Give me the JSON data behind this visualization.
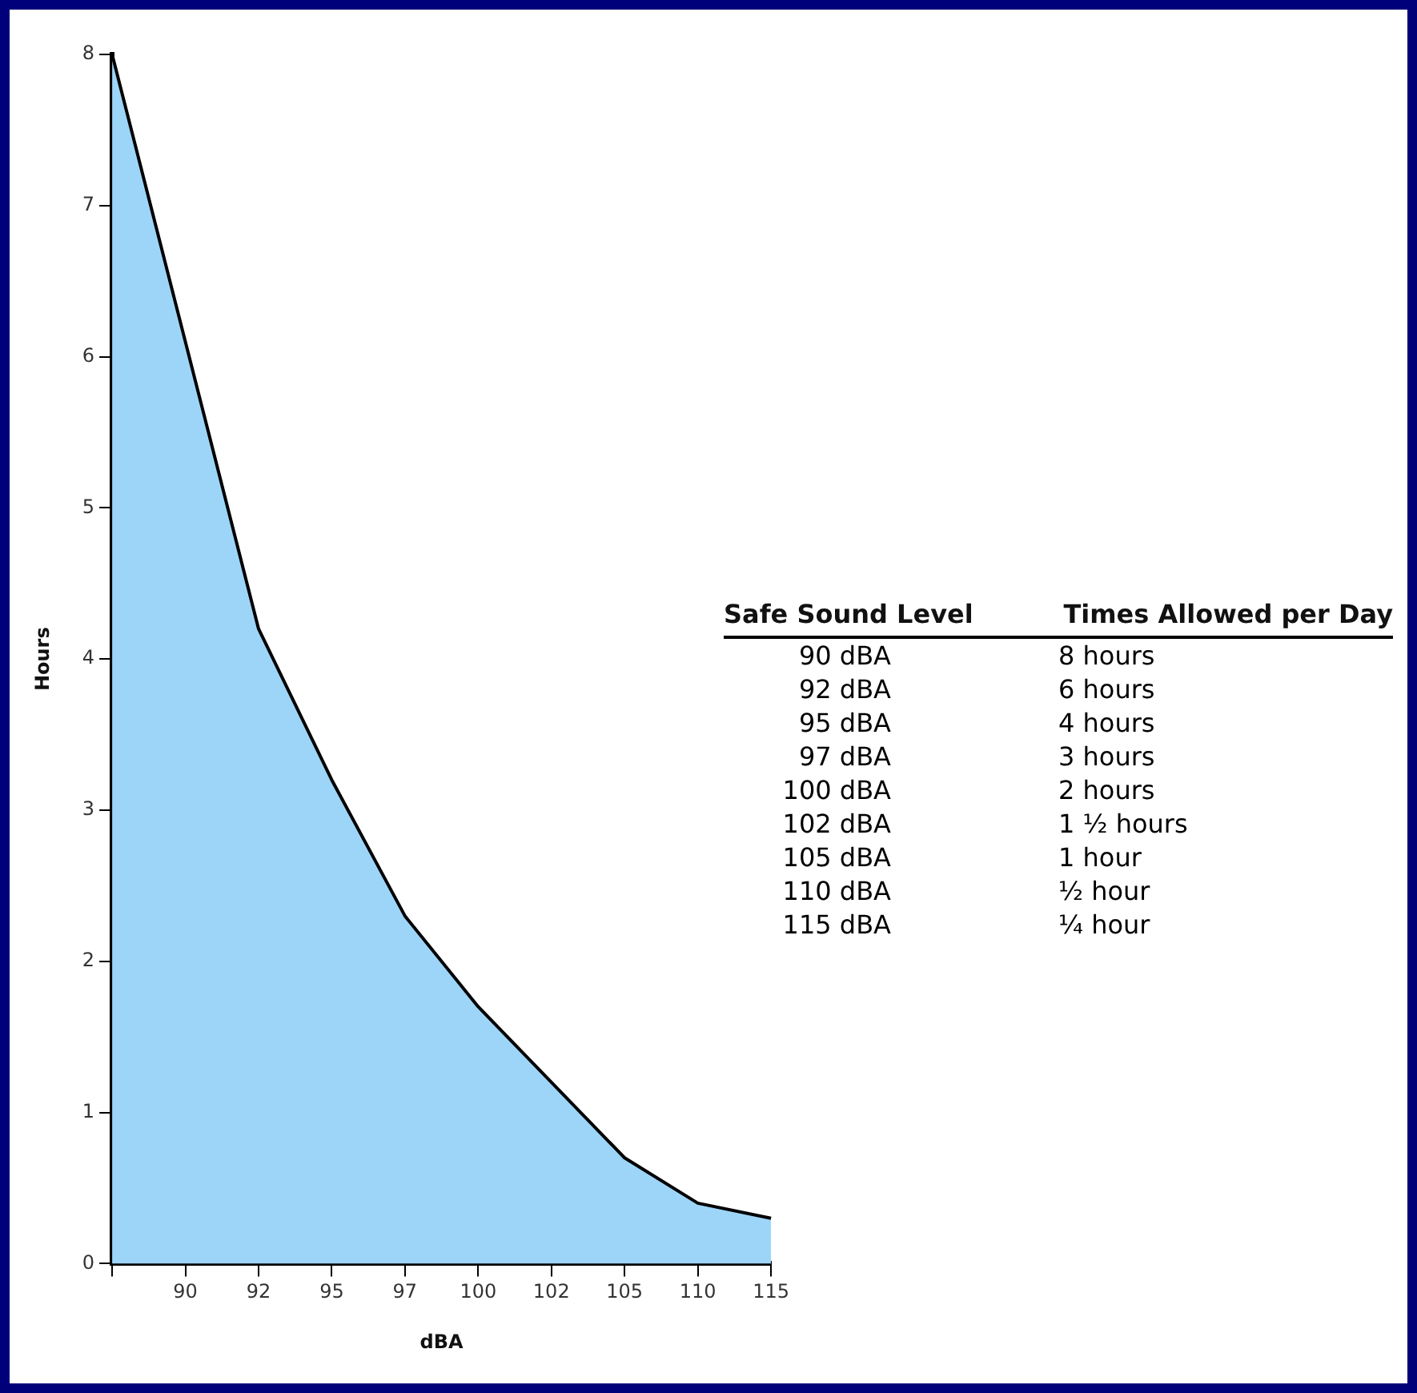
{
  "chart_data": {
    "type": "area",
    "xlabel": "dBA",
    "ylabel": "Hours",
    "categories": [
      null,
      "90",
      "92",
      "95",
      "97",
      "100",
      "102",
      "105",
      "110",
      "115"
    ],
    "series": [
      {
        "color": "#9dd5f9",
        "values": [
          8,
          6.1,
          4.2,
          3.2,
          2.3,
          1.7,
          1.2,
          0.7,
          0.4,
          0.3
        ]
      }
    ],
    "ylim": [
      0,
      8
    ],
    "yticks": [
      0,
      1,
      2,
      3,
      4,
      5,
      6,
      7,
      8
    ],
    "grid": false,
    "legend": false,
    "annotations": [
      "Safe Sound Level",
      "Times Allowed per Day",
      "90 dBA",
      "8 hours",
      "92 dBA",
      "6 hours",
      "95 dBA",
      "4 hours",
      "97 dBA",
      "3 hours",
      "100 dBA",
      "2 hours",
      "102 dBA",
      "1 ½ hours",
      "105 dBA",
      "1 hour",
      "110 dBA",
      "½ hour",
      "115 dBA",
      "¼ hour"
    ]
  }
}
